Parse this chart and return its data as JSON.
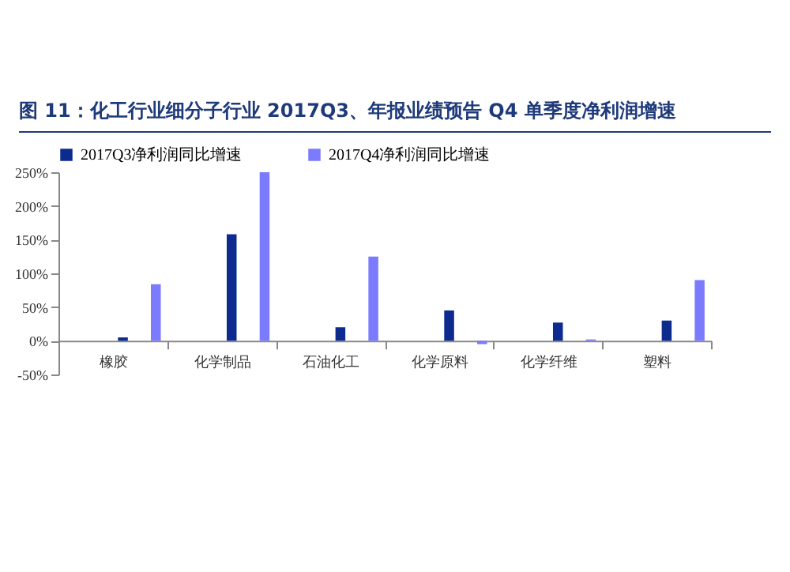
{
  "chart_data": {
    "type": "bar",
    "title": "图 11：化工行业细分子行业 2017Q3、年报业绩预告 Q4 单季度净利润增速",
    "categories": [
      "橡胶",
      "化学制品",
      "石油化工",
      "化学原料",
      "化学纤维",
      "塑料"
    ],
    "series": [
      {
        "name": "2017Q3净利润同比增速",
        "color": "#0d2a8f",
        "values": [
          5,
          158,
          20,
          45,
          27,
          30
        ]
      },
      {
        "name": "2017Q4净利润同比增速",
        "color": "#7b7bff",
        "values": [
          84,
          250,
          125,
          -5,
          2,
          90
        ]
      }
    ],
    "ylim": [
      -50,
      250
    ],
    "yticks": [
      {
        "value": -50,
        "label": "-50%"
      },
      {
        "value": 0,
        "label": "0%"
      },
      {
        "value": 50,
        "label": "50%"
      },
      {
        "value": 100,
        "label": "100%"
      },
      {
        "value": 150,
        "label": "150%"
      },
      {
        "value": 200,
        "label": "200%"
      },
      {
        "value": 250,
        "label": "250%"
      }
    ],
    "legend": "top",
    "grid": false
  }
}
